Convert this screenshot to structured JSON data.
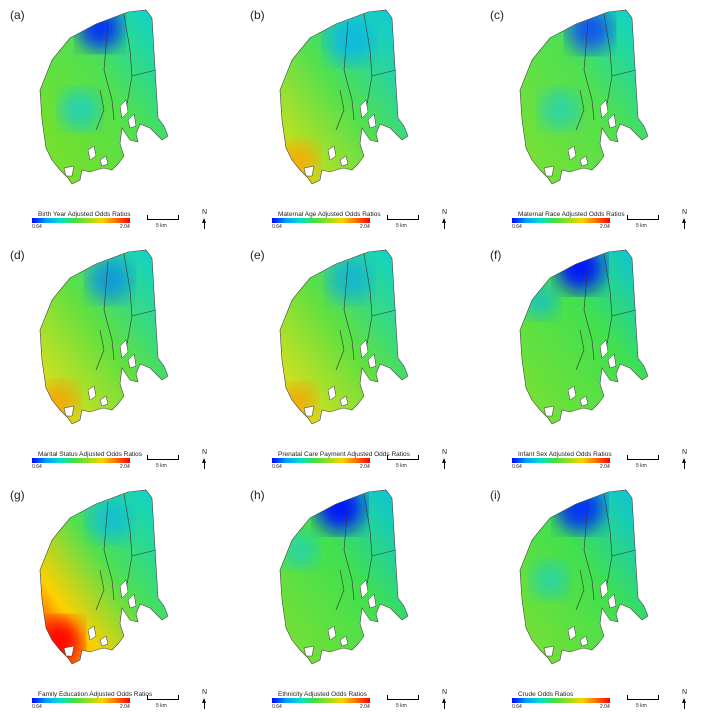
{
  "panels": [
    {
      "label": "(a)",
      "title": "Birth Year Adjusted Odds Ratios",
      "variant": "a"
    },
    {
      "label": "(b)",
      "title": "Maternal Age Adjusted Odds Ratios",
      "variant": "b"
    },
    {
      "label": "(c)",
      "title": "Maternal Race Adjusted Odds Ratios",
      "variant": "c"
    },
    {
      "label": "(d)",
      "title": "Marital Status Adjusted Odds Ratios",
      "variant": "d"
    },
    {
      "label": "(e)",
      "title": "Prenatal Care Payment Adjusted Odds Ratios",
      "variant": "e"
    },
    {
      "label": "(f)",
      "title": "Infant Sex Adjusted Odds Ratios",
      "variant": "f"
    },
    {
      "label": "(g)",
      "title": "Family Education Adjusted Odds Ratios",
      "variant": "g"
    },
    {
      "label": "(h)",
      "title": "Ethnicity Adjusted Odds Ratios",
      "variant": "h"
    },
    {
      "label": "(i)",
      "title": "Crude Odds Ratios",
      "variant": "i"
    }
  ],
  "legend": {
    "min": "0.64",
    "max": "2.04"
  },
  "scale_bar": {
    "label": "5 km"
  },
  "north": {
    "label": "N"
  },
  "colors": {
    "blue": "#0000ff",
    "cyan": "#00d8e8",
    "green": "#40e040",
    "yellow": "#ffd000",
    "red": "#ff0000"
  }
}
